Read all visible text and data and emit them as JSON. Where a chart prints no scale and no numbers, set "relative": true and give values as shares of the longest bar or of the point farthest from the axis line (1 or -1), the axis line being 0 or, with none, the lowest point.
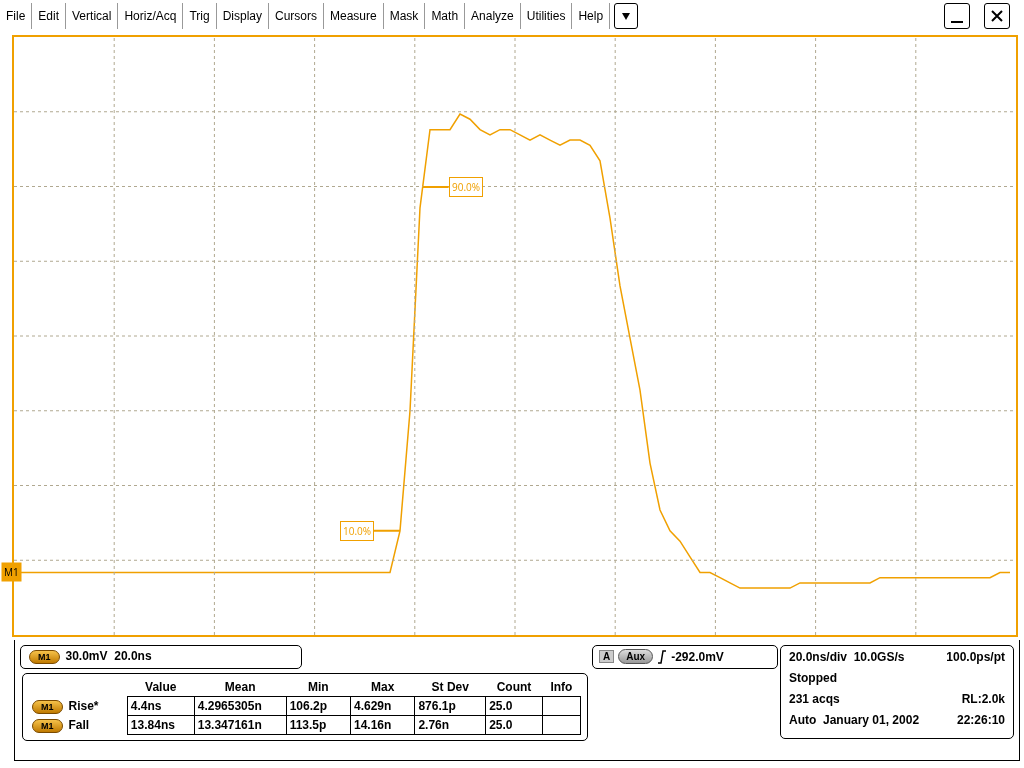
{
  "chart_data": [
    {
      "type": "line",
      "relative": true,
      "grid": true,
      "categories": [
        null,
        null,
        null,
        null,
        null,
        null,
        null,
        null,
        null,
        null,
        null,
        null,
        null,
        null,
        null,
        null,
        null,
        null,
        null,
        null,
        null,
        null,
        null,
        null,
        null,
        null,
        null,
        null,
        null,
        null,
        null,
        null,
        null,
        null,
        null,
        null,
        null,
        null,
        null,
        null,
        null,
        null,
        null,
        null,
        null,
        null,
        null,
        null,
        null,
        null,
        null,
        null,
        null,
        null,
        null,
        null,
        null,
        null,
        null,
        null,
        null,
        null,
        null,
        null,
        null,
        null,
        null,
        null,
        null,
        null,
        null,
        null,
        null,
        null,
        null,
        null,
        null,
        null,
        null,
        null,
        null,
        null,
        null,
        null,
        null,
        null,
        null,
        null,
        null,
        null,
        null,
        null,
        null,
        null,
        null,
        null,
        null,
        null,
        null,
        null
      ],
      "series": [
        {
          "name": "M1",
          "color": "#f0a000",
          "values": [
            0.12,
            0.12,
            0.12,
            0.12,
            0.12,
            0.12,
            0.12,
            0.12,
            0.12,
            0.12,
            0.12,
            0.12,
            0.12,
            0.12,
            0.12,
            0.12,
            0.12,
            0.12,
            0.12,
            0.12,
            0.12,
            0.12,
            0.12,
            0.12,
            0.12,
            0.12,
            0.12,
            0.12,
            0.12,
            0.12,
            0.12,
            0.12,
            0.12,
            0.12,
            0.12,
            0.12,
            0.12,
            0.12,
            0.2,
            0.43,
            0.82,
            0.97,
            0.97,
            0.97,
            1,
            0.99,
            0.97,
            0.96,
            0.97,
            0.97,
            0.96,
            0.95,
            0.96,
            0.95,
            0.94,
            0.95,
            0.95,
            0.94,
            0.91,
            0.8,
            0.67,
            0.57,
            0.47,
            0.33,
            0.24,
            0.2,
            0.18,
            0.15,
            0.12,
            0.12,
            0.11,
            0.1,
            0.09,
            0.09,
            0.09,
            0.09,
            0.09,
            0.09,
            0.1,
            0.1,
            0.1,
            0.1,
            0.1,
            0.1,
            0.1,
            0.1,
            0.11,
            0.11,
            0.11,
            0.11,
            0.11,
            0.11,
            0.11,
            0.11,
            0.11,
            0.11,
            0.11,
            0.11,
            0.12,
            0.12
          ]
        }
      ],
      "annotations": [
        {
          "text": "90.0%",
          "y": 0.86
        },
        {
          "text": "10.0%",
          "y": 0.2
        }
      ]
    },
    {
      "type": "other",
      "annotations": [
        "File",
        "Edit",
        "Vertical",
        "Horiz/Acq",
        "Trig",
        "Display",
        "Cursors",
        "Measure",
        "Mask",
        "Math",
        "Analyze",
        "Utilities",
        "Help"
      ]
    },
    {
      "type": "other",
      "annotations": [
        "M1",
        "30.0mV  20.0ns"
      ]
    },
    {
      "type": "other",
      "annotations": [
        "A",
        "Aux",
        "-292.0mV"
      ]
    },
    {
      "type": "other",
      "annotations": [
        "Value",
        "Mean",
        "Min",
        "Max",
        "St Dev",
        "Count",
        "Info",
        "M1",
        "Rise*",
        "4.4ns",
        "4.2965305n",
        "106.2p",
        "4.629n",
        "876.1p",
        "25.0",
        "M1",
        "Fall",
        "13.84ns",
        "13.347161n",
        "113.5p",
        "14.16n",
        "2.76n",
        "25.0"
      ]
    },
    {
      "type": "other",
      "annotations": [
        "20.0ns/div",
        "10.0GS/s",
        "100.0ps/pt",
        "Stopped",
        "231 acqs",
        "RL:2.0k",
        "Auto",
        "January 01, 2002",
        "22:26:10"
      ]
    }
  ]
}
